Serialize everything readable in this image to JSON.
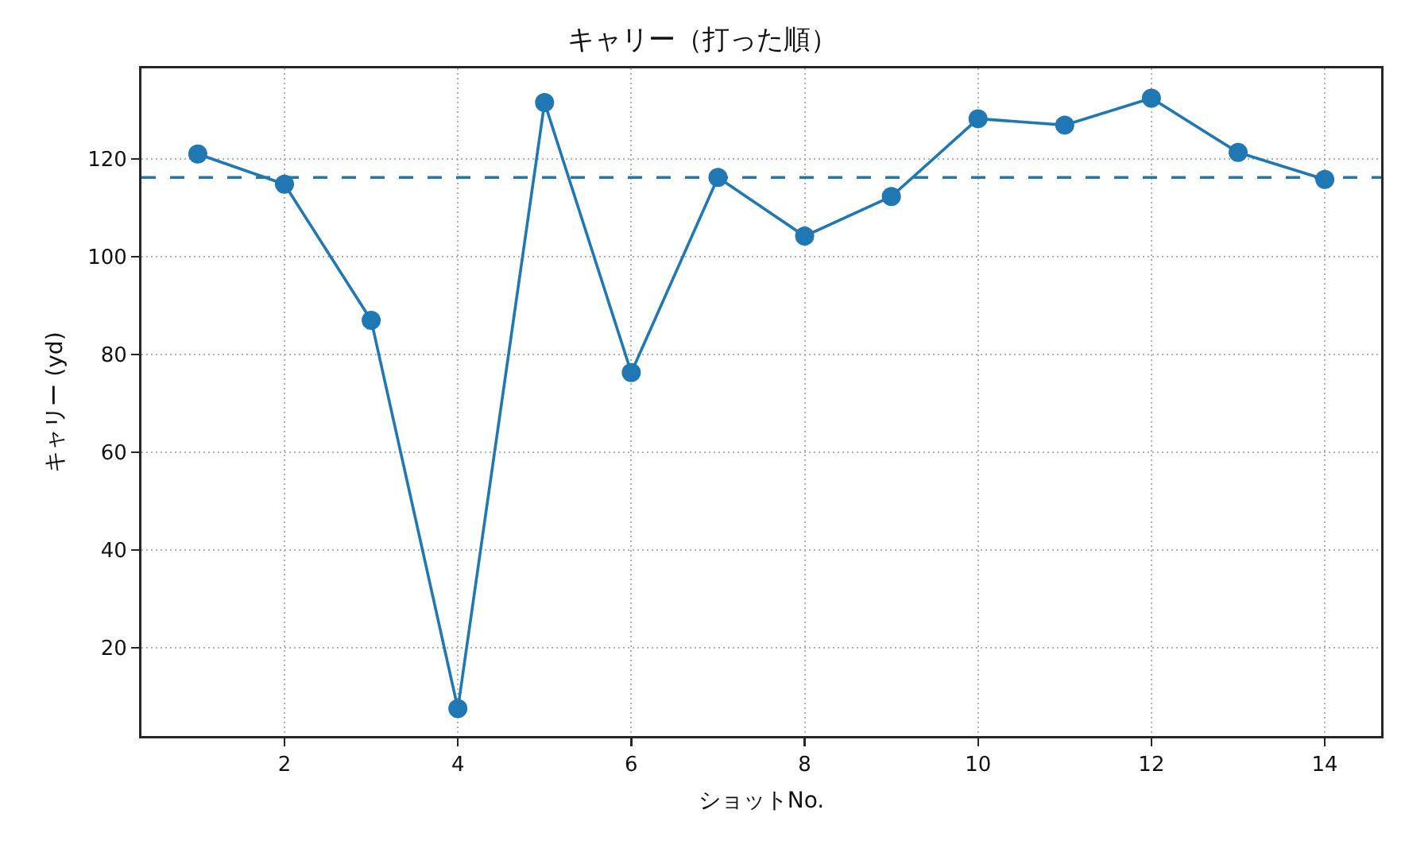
{
  "chart_data": {
    "type": "line",
    "title": "キャリー（打った順）",
    "xlabel": "ショットNo.",
    "ylabel": "キャリー (yd)",
    "x": [
      1,
      2,
      3,
      4,
      5,
      6,
      7,
      8,
      9,
      10,
      11,
      12,
      13,
      14
    ],
    "values": [
      121.0,
      114.8,
      87.0,
      7.6,
      131.5,
      76.3,
      116.2,
      104.2,
      112.3,
      128.2,
      126.9,
      132.4,
      121.3,
      115.8
    ],
    "color": "#1f77b4",
    "xlim": [
      0.35,
      14.65
    ],
    "xticks": [
      2,
      4,
      6,
      8,
      10,
      12,
      14
    ],
    "ylim": [
      2,
      138.5
    ],
    "yticks": [
      20,
      40,
      60,
      80,
      100,
      120
    ],
    "grid": true,
    "marker": "circle",
    "line_style": "solid",
    "ref_lines": [
      {
        "axis": "y",
        "value": 116.2,
        "color": "#1f77b4",
        "line_style": "dashed"
      }
    ]
  }
}
